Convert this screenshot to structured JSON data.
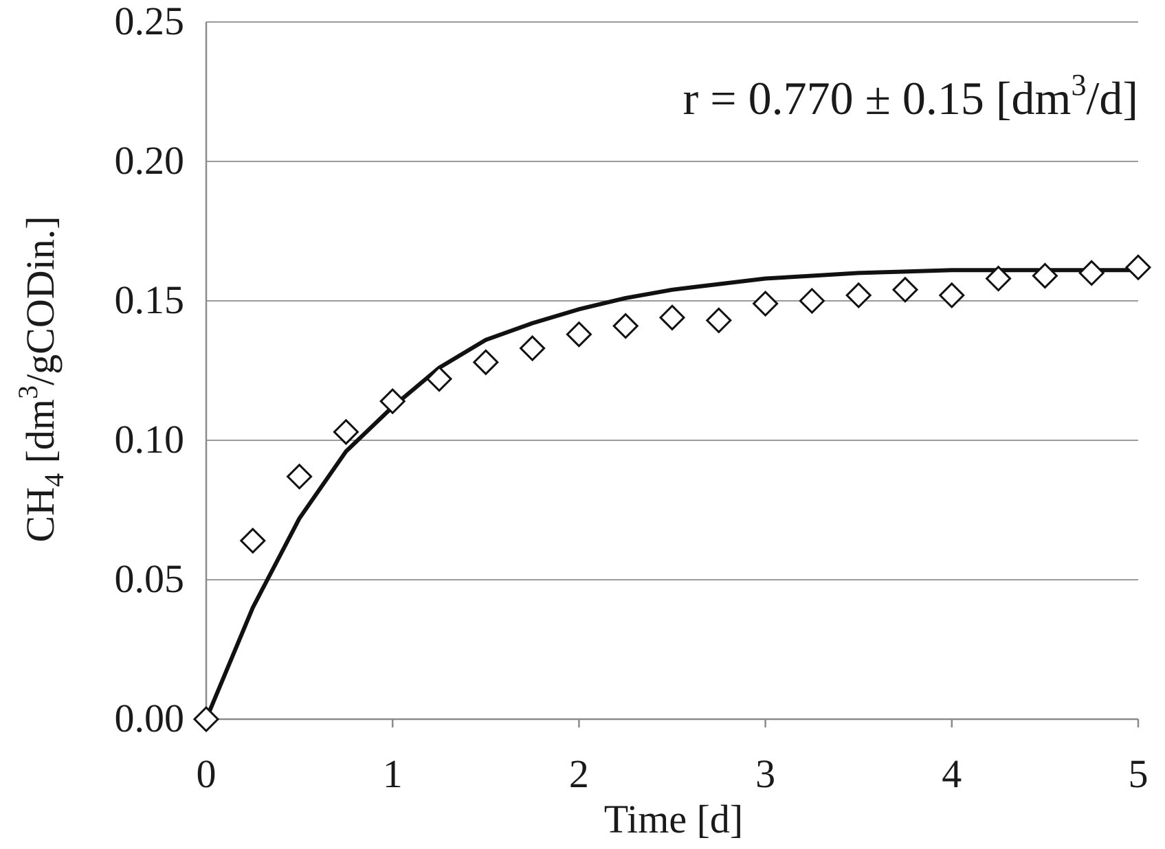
{
  "chart_data": {
    "type": "scatter",
    "xlabel": "Time [d]",
    "ylabel": {
      "pre": "CH",
      "sub": "4",
      "mid": " [dm",
      "sup": "3",
      "post": "/gCODin.]"
    },
    "annotation": {
      "pre": "r = 0.770 ± 0.15 [dm",
      "sup": "3",
      "post": "/d]"
    },
    "xlim": [
      0,
      5
    ],
    "ylim": [
      0,
      0.25
    ],
    "x_ticks": [
      "0",
      "1",
      "2",
      "3",
      "4",
      "5"
    ],
    "y_ticks": [
      "0.00",
      "0.05",
      "0.10",
      "0.15",
      "0.20",
      "0.25"
    ],
    "grid": "horizontal",
    "series": [
      {
        "kind": "markers",
        "marker": "open-diamond",
        "x": [
          0,
          0.25,
          0.5,
          0.75,
          1.0,
          1.25,
          1.5,
          1.75,
          2.0,
          2.25,
          2.5,
          2.75,
          3.0,
          3.25,
          3.5,
          3.75,
          4.0,
          4.25,
          4.5,
          4.75,
          5.0
        ],
        "y": [
          0.0,
          0.064,
          0.087,
          0.103,
          0.114,
          0.122,
          0.128,
          0.133,
          0.138,
          0.141,
          0.144,
          0.143,
          0.149,
          0.15,
          0.152,
          0.154,
          0.152,
          0.158,
          0.159,
          0.16,
          0.162
        ]
      },
      {
        "kind": "line",
        "x": [
          0,
          0.25,
          0.5,
          0.75,
          1.0,
          1.25,
          1.5,
          1.75,
          2.0,
          2.25,
          2.5,
          2.75,
          3.0,
          3.25,
          3.5,
          3.75,
          4.0,
          4.25,
          4.5,
          4.75,
          5.0
        ],
        "y": [
          0.0,
          0.04,
          0.072,
          0.096,
          0.112,
          0.126,
          0.136,
          0.142,
          0.147,
          0.151,
          0.154,
          0.156,
          0.158,
          0.159,
          0.16,
          0.1605,
          0.161,
          0.161,
          0.161,
          0.161,
          0.161
        ]
      }
    ],
    "colors": {
      "line": "#111111",
      "marker": "#111111",
      "grid": "#9a9a9a",
      "text": "#1a1a1a"
    }
  }
}
